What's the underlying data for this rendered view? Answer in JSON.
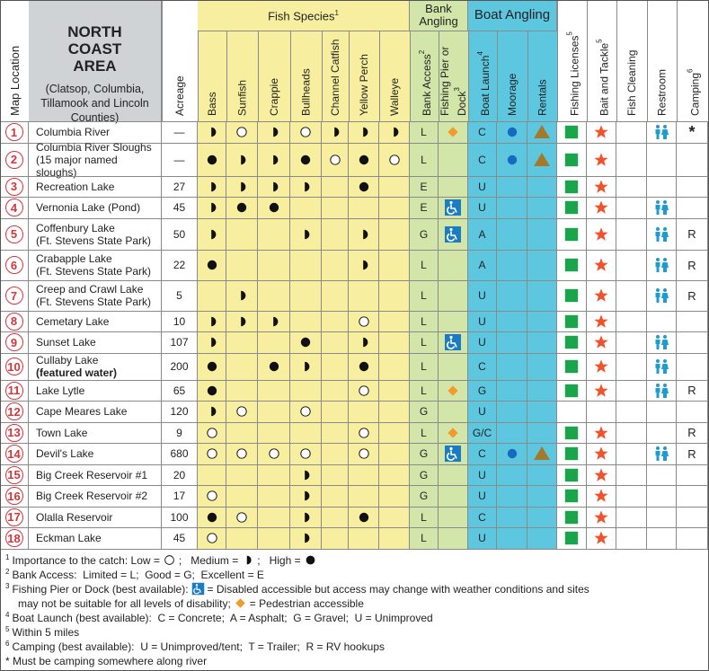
{
  "header": {
    "map_location": "Map Location",
    "title": "NORTH COAST AREA",
    "subtitle": "(Clatsop, Columbia, Tillamook and Lincoln Counties)",
    "acreage": "Acreage"
  },
  "groups": [
    {
      "label": "Fish Species",
      "note": "1"
    },
    {
      "label": "Bank Angling"
    },
    {
      "label": "Boat Angling"
    }
  ],
  "columns": [
    {
      "label": "Bass"
    },
    {
      "label": "Sunfish"
    },
    {
      "label": "Crappie"
    },
    {
      "label": "Bullheads"
    },
    {
      "label": "Channel Catfish"
    },
    {
      "label": "Yellow Perch"
    },
    {
      "label": "Walleye"
    },
    {
      "label": "Bank Access",
      "note": "2"
    },
    {
      "label": "Fishing Pier or Dock",
      "note": "3"
    },
    {
      "label": "Boat Launch",
      "note": "4"
    },
    {
      "label": "Moorage"
    },
    {
      "label": "Rentals"
    },
    {
      "label": "Fishing Licenses",
      "note": "5"
    },
    {
      "label": "Bait and Tackle",
      "note": "5"
    },
    {
      "label": "Fish Cleaning"
    },
    {
      "label": "Restroom"
    },
    {
      "label": "Camping",
      "note": "6"
    }
  ],
  "rows": [
    {
      "number": 1,
      "name": [
        "Columbia River"
      ],
      "acreage": "—",
      "fish": [
        "medium",
        "low",
        "medium",
        "low",
        "medium",
        "medium",
        "medium"
      ],
      "bank_access": "L",
      "pier": "pedestrian",
      "boat_launch": "C",
      "moorage": true,
      "rentals": true,
      "licenses": true,
      "bait": true,
      "cleaning": false,
      "restroom": true,
      "camping": "*"
    },
    {
      "number": 2,
      "name": [
        "Columbia River Sloughs",
        "(15 major named sloughs)"
      ],
      "acreage": "—",
      "fish": [
        "high",
        "medium",
        "medium",
        "high",
        "low",
        "high",
        "low"
      ],
      "bank_access": "L",
      "pier": null,
      "boat_launch": "C",
      "moorage": true,
      "rentals": true,
      "licenses": true,
      "bait": true,
      "cleaning": false,
      "restroom": false,
      "camping": null
    },
    {
      "number": 3,
      "name": [
        "Recreation Lake"
      ],
      "acreage": 27,
      "fish": [
        "medium",
        "medium",
        "medium",
        "medium",
        null,
        "high",
        null
      ],
      "bank_access": "E",
      "pier": null,
      "boat_launch": "U",
      "moorage": false,
      "rentals": false,
      "licenses": true,
      "bait": true,
      "cleaning": false,
      "restroom": false,
      "camping": null
    },
    {
      "number": 4,
      "name": [
        "Vernonia Lake (Pond)"
      ],
      "acreage": 45,
      "fish": [
        "medium",
        "high",
        "high",
        null,
        null,
        null,
        null
      ],
      "bank_access": "E",
      "pier": "accessible",
      "boat_launch": "U",
      "moorage": false,
      "rentals": false,
      "licenses": true,
      "bait": true,
      "cleaning": false,
      "restroom": true,
      "camping": null
    },
    {
      "number": 5,
      "name": [
        "Coffenbury Lake",
        "(Ft. Stevens State Park)"
      ],
      "acreage": 50,
      "fish": [
        "medium",
        null,
        null,
        "medium",
        null,
        "medium",
        null
      ],
      "bank_access": "G",
      "pier": "accessible",
      "boat_launch": "A",
      "moorage": false,
      "rentals": false,
      "licenses": true,
      "bait": true,
      "cleaning": false,
      "restroom": true,
      "camping": "R"
    },
    {
      "number": 6,
      "name": [
        "Crabapple Lake",
        "(Ft. Stevens State Park)"
      ],
      "acreage": 22,
      "fish": [
        "high",
        null,
        null,
        null,
        null,
        "medium",
        null
      ],
      "bank_access": "L",
      "pier": null,
      "boat_launch": "A",
      "moorage": false,
      "rentals": false,
      "licenses": true,
      "bait": true,
      "cleaning": false,
      "restroom": true,
      "camping": "R"
    },
    {
      "number": 7,
      "name": [
        "Creep and Crawl Lake",
        "(Ft. Stevens State Park)"
      ],
      "acreage": 5,
      "fish": [
        null,
        "medium",
        null,
        null,
        null,
        null,
        null
      ],
      "bank_access": "L",
      "pier": null,
      "boat_launch": "U",
      "moorage": false,
      "rentals": false,
      "licenses": true,
      "bait": true,
      "cleaning": false,
      "restroom": true,
      "camping": "R"
    },
    {
      "number": 8,
      "name": [
        "Cemetary Lake"
      ],
      "acreage": 10,
      "fish": [
        "medium",
        "medium",
        "medium",
        null,
        null,
        "low",
        null
      ],
      "bank_access": "L",
      "pier": null,
      "boat_launch": "U",
      "moorage": false,
      "rentals": false,
      "licenses": true,
      "bait": true,
      "cleaning": false,
      "restroom": false,
      "camping": null
    },
    {
      "number": 9,
      "name": [
        "Sunset Lake"
      ],
      "acreage": 107,
      "fish": [
        "medium",
        null,
        null,
        "high",
        null,
        "medium",
        null
      ],
      "bank_access": "L",
      "pier": "accessible",
      "boat_launch": "U",
      "moorage": false,
      "rentals": false,
      "licenses": true,
      "bait": true,
      "cleaning": false,
      "restroom": true,
      "camping": null
    },
    {
      "number": 10,
      "name": [
        "Cullaby Lake",
        "(featured water)"
      ],
      "featured": true,
      "acreage": 200,
      "fish": [
        "high",
        null,
        "high",
        "medium",
        null,
        "high",
        null
      ],
      "bank_access": "L",
      "pier": null,
      "boat_launch": "C",
      "moorage": false,
      "rentals": false,
      "licenses": true,
      "bait": true,
      "cleaning": false,
      "restroom": true,
      "camping": null
    },
    {
      "number": 11,
      "name": [
        "Lake Lytle"
      ],
      "acreage": 65,
      "fish": [
        "high",
        null,
        null,
        null,
        null,
        "low",
        null
      ],
      "bank_access": "L",
      "pier": "pedestrian",
      "boat_launch": "G",
      "moorage": false,
      "rentals": false,
      "licenses": true,
      "bait": true,
      "cleaning": false,
      "restroom": true,
      "camping": "R"
    },
    {
      "number": 12,
      "name": [
        "Cape Meares Lake"
      ],
      "acreage": 120,
      "fish": [
        "medium",
        "low",
        null,
        "low",
        null,
        null,
        null
      ],
      "bank_access": "G",
      "pier": null,
      "boat_launch": "U",
      "moorage": false,
      "rentals": false,
      "licenses": false,
      "bait": false,
      "cleaning": false,
      "restroom": false,
      "camping": null
    },
    {
      "number": 13,
      "name": [
        "Town Lake"
      ],
      "acreage": 9,
      "fish": [
        "low",
        null,
        null,
        null,
        null,
        "low",
        null
      ],
      "bank_access": "L",
      "pier": "pedestrian",
      "boat_launch": "G/C",
      "moorage": false,
      "rentals": false,
      "licenses": true,
      "bait": true,
      "cleaning": false,
      "restroom": false,
      "camping": "R"
    },
    {
      "number": 14,
      "name": [
        "Devil's Lake"
      ],
      "acreage": 680,
      "fish": [
        "low",
        "low",
        "low",
        "low",
        null,
        "low",
        null
      ],
      "bank_access": "G",
      "pier": "accessible",
      "boat_launch": "C",
      "moorage": true,
      "rentals": true,
      "licenses": true,
      "bait": true,
      "cleaning": false,
      "restroom": true,
      "camping": "R"
    },
    {
      "number": 15,
      "name": [
        "Big Creek Reservoir #1"
      ],
      "acreage": 20,
      "fish": [
        null,
        null,
        null,
        "medium",
        null,
        null,
        null
      ],
      "bank_access": "G",
      "pier": null,
      "boat_launch": "U",
      "moorage": false,
      "rentals": false,
      "licenses": true,
      "bait": true,
      "cleaning": false,
      "restroom": false,
      "camping": null
    },
    {
      "number": 16,
      "name": [
        "Big Creek Reservoir #2"
      ],
      "acreage": 17,
      "fish": [
        "low",
        null,
        null,
        "medium",
        null,
        null,
        null
      ],
      "bank_access": "G",
      "pier": null,
      "boat_launch": "U",
      "moorage": false,
      "rentals": false,
      "licenses": true,
      "bait": true,
      "cleaning": false,
      "restroom": false,
      "camping": null
    },
    {
      "number": 17,
      "name": [
        "Olalla Reservoir"
      ],
      "acreage": 100,
      "fish": [
        "high",
        "low",
        null,
        "medium",
        null,
        "high",
        null
      ],
      "bank_access": "L",
      "pier": null,
      "boat_launch": "C",
      "moorage": false,
      "rentals": false,
      "licenses": true,
      "bait": true,
      "cleaning": false,
      "restroom": false,
      "camping": null
    },
    {
      "number": 18,
      "name": [
        "Eckman Lake"
      ],
      "acreage": 45,
      "fish": [
        "low",
        null,
        null,
        "medium",
        null,
        null,
        null
      ],
      "bank_access": "L",
      "pier": null,
      "boat_launch": "U",
      "moorage": false,
      "rentals": false,
      "licenses": true,
      "bait": true,
      "cleaning": false,
      "restroom": false,
      "camping": null
    }
  ],
  "footnotes": [
    [
      {
        "sup": "1"
      },
      "Importance to the catch: Low =",
      {
        "symbol": "low"
      },
      ";   Medium =",
      {
        "symbol": "medium"
      },
      ";   High =",
      {
        "symbol": "high"
      }
    ],
    [
      {
        "sup": "2"
      },
      "Bank Access:  Limited = L;  Good = G;  Excellent = E"
    ],
    [
      {
        "sup": "3"
      },
      "Fishing Pier or Dock (best available):",
      {
        "symbol": "accessible"
      },
      "= Disabled accessible but access may change with weather conditions and sites"
    ],
    [
      "may not be suitable for all levels of disability;",
      {
        "symbol": "pedestrian"
      },
      "= Pedestrian accessible"
    ],
    [
      {
        "sup": "4"
      },
      "Boat Launch (best available):  C = Concrete;  A = Asphalt;  G = Gravel;  U = Unimproved"
    ],
    [
      {
        "sup": "5"
      },
      "Within 5 miles"
    ],
    [
      {
        "sup": "6"
      },
      "Camping (best available):  U = Unimproved/tent;  T = Trailer;  R = RV hookups"
    ],
    [
      "* Must be camping somewhere along river"
    ]
  ]
}
